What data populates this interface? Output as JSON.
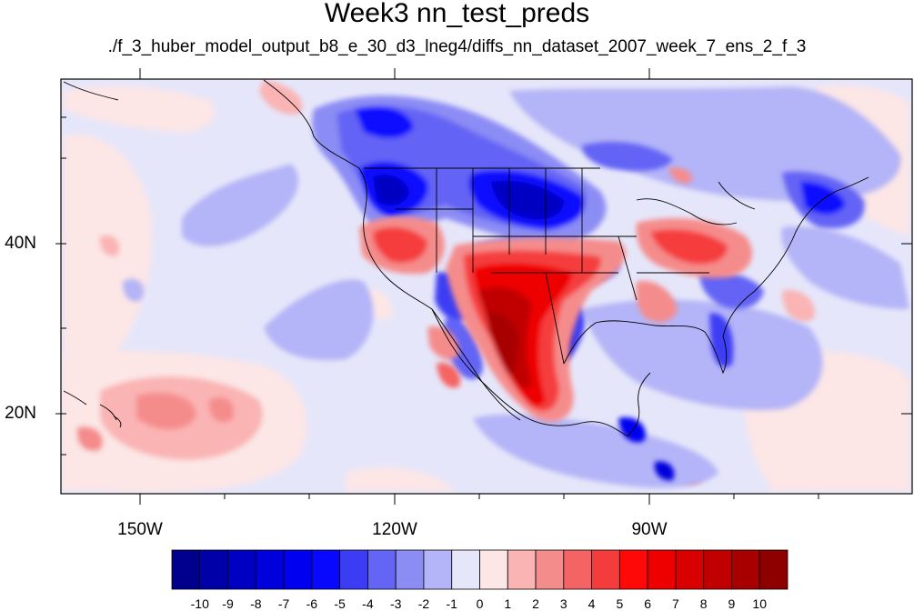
{
  "title": "Week3 nn_test_preds",
  "subtitle": "./f_3_huber_model_output_b8_e_30_d3_lneg4/diffs_nn_dataset_2007_week_7_ens_2_f_3",
  "map": {
    "lon_labels": [
      "150W",
      "120W",
      "90W"
    ],
    "lat_labels": [
      "40N",
      "20N"
    ],
    "projection": "cylindrical equidistant",
    "extent": {
      "lon": [
        -160,
        -62
      ],
      "lat": [
        10.6,
        59.5
      ]
    }
  },
  "colorbar": {
    "labels": [
      "-10",
      "-9",
      "-8",
      "-7",
      "-6",
      "-5",
      "-4",
      "-3",
      "-2",
      "-1",
      "0",
      "1",
      "2",
      "3",
      "4",
      "5",
      "6",
      "7",
      "8",
      "9",
      "10"
    ],
    "colors": [
      "#00008c",
      "#0000a8",
      "#0000c2",
      "#0000dc",
      "#0000f0",
      "#0808ff",
      "#3c3cf5",
      "#6464f5",
      "#8c8cf5",
      "#b4b4f8",
      "#e6e6fa",
      "#fce6e6",
      "#fab4b4",
      "#f58c8c",
      "#f56464",
      "#f53c3c",
      "#ff0808",
      "#ee0000",
      "#d80000",
      "#c00000",
      "#a80000",
      "#8c0000"
    ]
  },
  "colors": {
    "background_field": "#e6e6fa",
    "border": "#000000"
  }
}
